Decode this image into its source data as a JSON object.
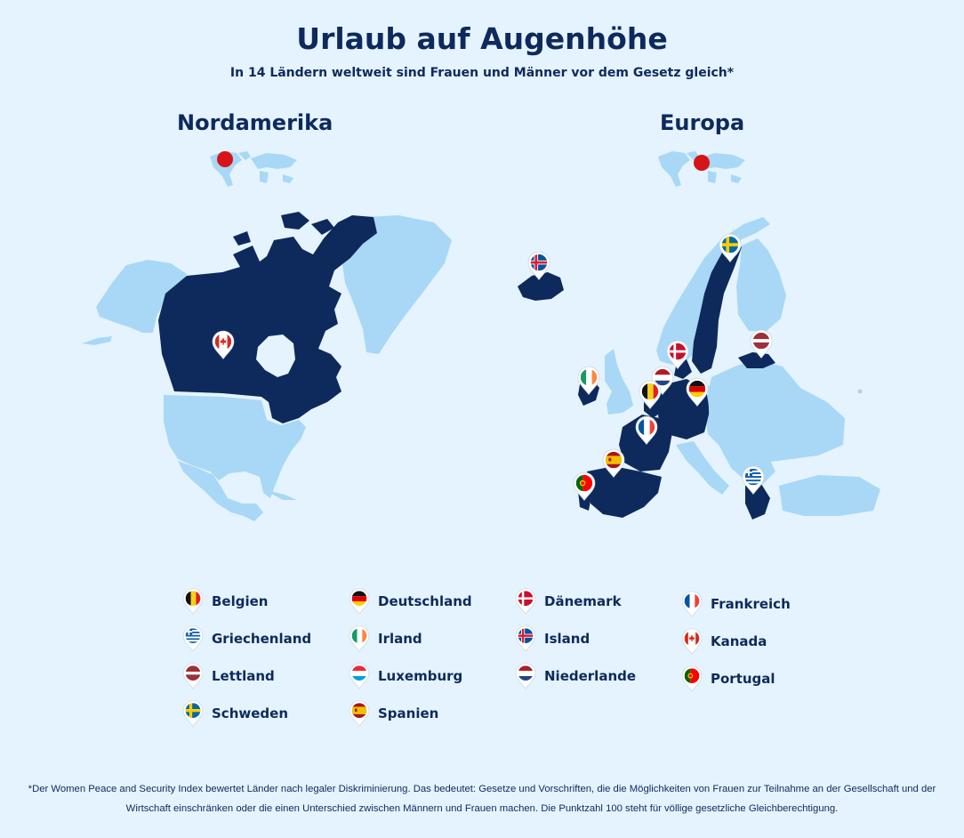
{
  "header": {
    "title": "Urlaub auf Augenhöhe",
    "subtitle": "In 14 Ländern weltweit sind Frauen und Männer vor dem Gesetz gleich*"
  },
  "regions": {
    "north_america": {
      "title": "Nordamerika"
    },
    "europe": {
      "title": "Europa"
    }
  },
  "colors": {
    "background": "#e4f3fd",
    "land": "#a8d8f5",
    "highlight": "#0e2a5c",
    "locator_dot": "#d7141a",
    "text": "#0e2a5c"
  },
  "legend": [
    {
      "label": "Belgien",
      "flag": "belgium-flag"
    },
    {
      "label": "Deutschland",
      "flag": "germany-flag"
    },
    {
      "label": "Dänemark",
      "flag": "denmark-flag"
    },
    {
      "label": "Frankreich",
      "flag": "france-flag"
    },
    {
      "label": "Griechenland",
      "flag": "greece-flag"
    },
    {
      "label": "Irland",
      "flag": "ireland-flag"
    },
    {
      "label": "Island",
      "flag": "iceland-flag"
    },
    {
      "label": "Kanada",
      "flag": "canada-flag"
    },
    {
      "label": "Lettland",
      "flag": "latvia-flag"
    },
    {
      "label": "Luxemburg",
      "flag": "luxembourg-flag"
    },
    {
      "label": "Niederlande",
      "flag": "netherlands-flag"
    },
    {
      "label": "Portugal",
      "flag": "portugal-flag"
    },
    {
      "label": "Schweden",
      "flag": "sweden-flag"
    },
    {
      "label": "Spanien",
      "flag": "spain-flag"
    }
  ],
  "footnote": "*Der Women Peace and Security Index bewertet Länder nach legaler Diskriminierung. Das bedeutet: Gesetze und Vorschriften, die die Möglichkeiten von Frauen zur Teilnahme an der Gesellschaft und der Wirtschaft einschränken oder die einen Unterschied zwischen Männern und Frauen machen. Die Punktzahl 100 steht für völlige gesetzliche Gleichberechtigung."
}
